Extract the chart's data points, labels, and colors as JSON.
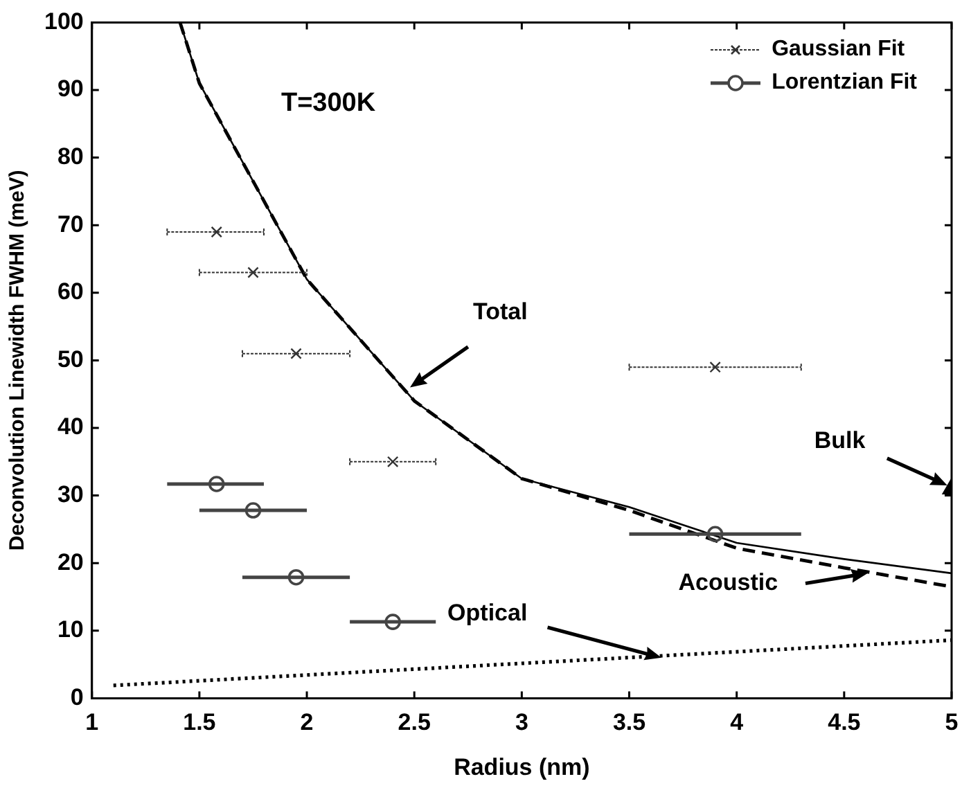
{
  "chart_data": {
    "type": "scatter",
    "xlabel": "Radius (nm)",
    "ylabel": "Deconvolution Linewidth FWHM (meV)",
    "xlim": [
      1,
      5
    ],
    "ylim": [
      0,
      100
    ],
    "xticks": [
      1,
      1.5,
      2,
      2.5,
      3,
      3.5,
      4,
      4.5,
      5
    ],
    "yticks": [
      0,
      10,
      20,
      30,
      40,
      50,
      60,
      70,
      80,
      90,
      100
    ],
    "grid": false,
    "legend": "top right",
    "series": [
      {
        "name": "Gaussian Fit",
        "type": "scatter",
        "marker": "cross",
        "color": "#333333",
        "x": [
          1.58,
          1.75,
          1.95,
          2.4,
          3.9
        ],
        "values": [
          69,
          63,
          51,
          35,
          49
        ],
        "xerrors": [
          [
            1.35,
            1.8
          ],
          [
            1.5,
            2.0
          ],
          [
            1.7,
            2.2
          ],
          [
            2.2,
            2.6
          ],
          [
            3.5,
            4.3
          ]
        ]
      },
      {
        "name": "Lorentzian Fit",
        "type": "scatter",
        "marker": "circle",
        "color": "#444444",
        "x": [
          1.58,
          1.75,
          1.95,
          2.4,
          3.9
        ],
        "values": [
          31.7,
          27.8,
          17.9,
          11.3,
          24.3
        ],
        "xerrors": [
          [
            1.35,
            1.8
          ],
          [
            1.5,
            2.0
          ],
          [
            1.7,
            2.2
          ],
          [
            2.2,
            2.6
          ],
          [
            3.5,
            4.3
          ]
        ]
      },
      {
        "type": "line",
        "line_style": "solid",
        "marker": "none",
        "color": "#000000",
        "x": [
          1.41,
          1.5,
          2,
          2.5,
          3,
          3.5,
          4,
          4.5,
          5
        ],
        "values": [
          100,
          91,
          62,
          44,
          32.5,
          28.3,
          23,
          20.6,
          18.5
        ]
      },
      {
        "type": "line",
        "line_style": "dashed",
        "marker": "none",
        "color": "#000000",
        "x": [
          1.41,
          1.5,
          2,
          2.5,
          3,
          3.5,
          4,
          4.5,
          5
        ],
        "values": [
          100,
          91,
          62,
          44,
          32.5,
          27.8,
          22.2,
          19.3,
          16.5
        ]
      },
      {
        "type": "line",
        "line_style": "dotted",
        "marker": "none",
        "color": "#000000",
        "x": [
          1.1,
          5
        ],
        "values": [
          1.9,
          8.6
        ]
      },
      {
        "type": "scatter",
        "marker": "triangle",
        "color": "#000000",
        "x": [
          5
        ],
        "values": [
          31
        ]
      }
    ],
    "annotations": [
      {
        "text": "T=300K"
      },
      "Total",
      "Acoustic",
      "Optical",
      "Bulk"
    ]
  }
}
